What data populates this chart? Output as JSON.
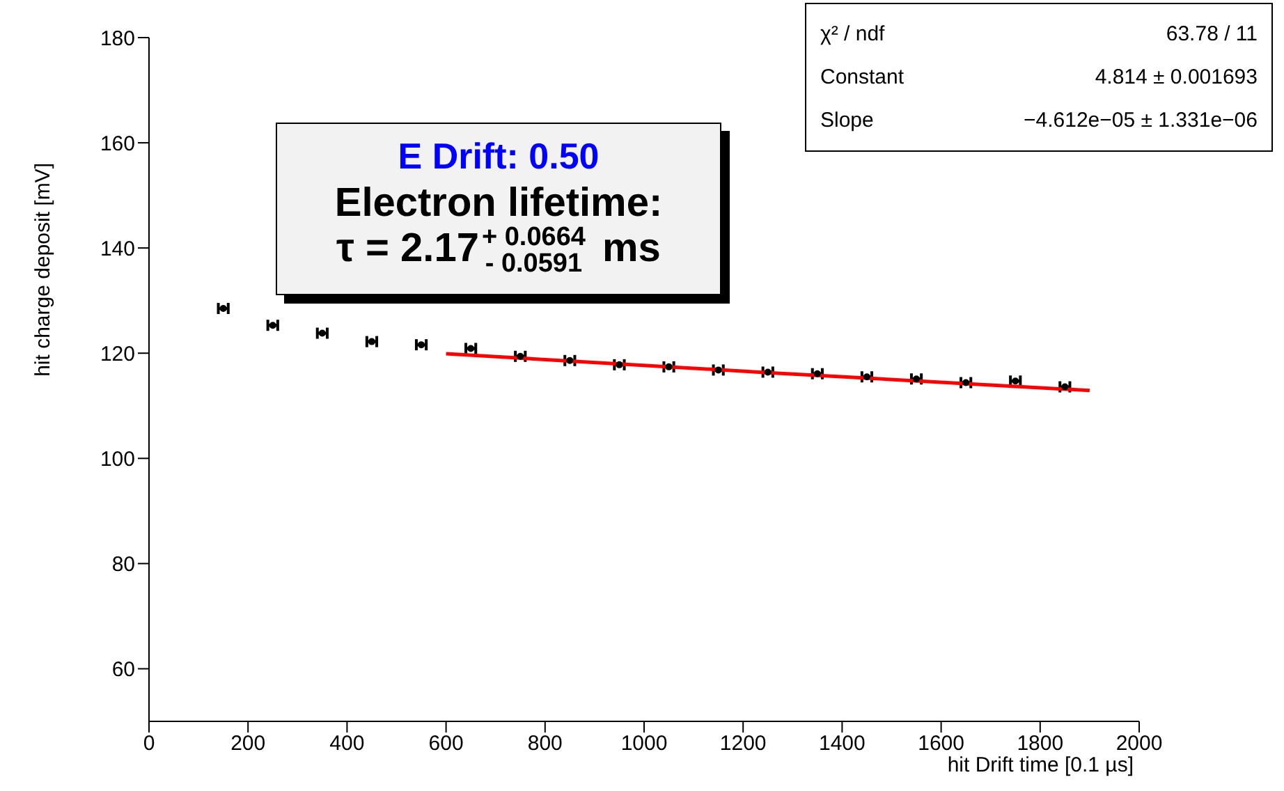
{
  "chart_data": {
    "type": "scatter",
    "xlabel": "hit Drift time [0.1 µs]",
    "ylabel": "hit charge deposit [mV]",
    "xlim": [
      0,
      2000
    ],
    "xticks": [
      0,
      200,
      400,
      600,
      800,
      1000,
      1200,
      1400,
      1600,
      1800,
      2000
    ],
    "ylim": [
      50,
      180
    ],
    "yticks": [
      60,
      80,
      100,
      120,
      140,
      160,
      180
    ],
    "grid": false,
    "legend": false,
    "series": [
      {
        "color": "#000000",
        "x": [
          150,
          250,
          350,
          450,
          550,
          650,
          750,
          850,
          950,
          1050,
          1150,
          1250,
          1350,
          1450,
          1550,
          1650,
          1750,
          1850
        ],
        "values": [
          128.5,
          125.3,
          123.8,
          122.2,
          121.6,
          120.9,
          119.4,
          118.6,
          117.8,
          117.4,
          116.8,
          116.4,
          116.1,
          115.5,
          115.1,
          114.4,
          114.7,
          113.6
        ],
        "xerrors": [
          10,
          10,
          10,
          10,
          10,
          10,
          10,
          10,
          10,
          10,
          10,
          10,
          10,
          10,
          10,
          10,
          10,
          10
        ],
        "errors": [
          0.3,
          0.3,
          0.3,
          0.3,
          0.3,
          0.3,
          0.3,
          0.3,
          0.3,
          0.3,
          0.3,
          0.3,
          0.3,
          0.3,
          0.3,
          0.3,
          0.3,
          0.3
        ]
      },
      {
        "type": "line",
        "color": "#ff0000",
        "x": [
          600,
          1250,
          1900
        ],
        "values": [
          119.9,
          116.3,
          112.9
        ]
      }
    ],
    "annotations": [
      "E Drift: 0.50",
      "Electron lifetime:",
      "τ = 2.17$^{+ 0.0664}$$_{- 0.0591}$ ms",
      "χ² / ndf",
      "63.78 / 11",
      "Constant",
      "4.814 ± 0.001693",
      "Slope",
      "−4.612e−05 ± 1.331e−06"
    ]
  }
}
